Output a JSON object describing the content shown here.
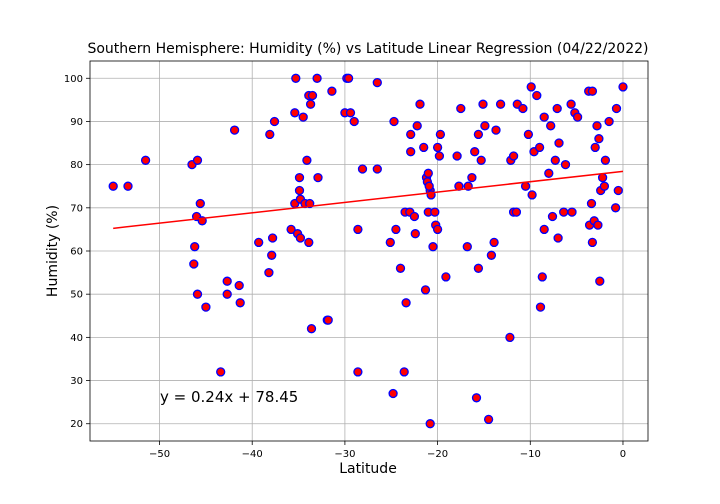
{
  "chart_data": {
    "type": "scatter",
    "title": "Southern Hemisphere: Humidity (%) vs Latitude Linear Regression (04/22/2022)",
    "xlabel": "Latitude",
    "ylabel": "Humidity (%)",
    "xlim": [
      -57.5,
      2.7
    ],
    "ylim": [
      16,
      104
    ],
    "xticks": [
      -50,
      -40,
      -30,
      -20,
      -10,
      0
    ],
    "yticks": [
      20,
      30,
      40,
      50,
      60,
      70,
      80,
      90,
      100
    ],
    "grid": true,
    "marker_face_color": "#ff0000",
    "marker_edge_color": "#0000ff",
    "regression": {
      "slope": 0.24,
      "intercept": 78.45,
      "x_range": [
        -55,
        0
      ],
      "color": "#ff0000",
      "equation_label": "y = 0.24x + 78.45"
    },
    "points": [
      [
        -55,
        75
      ],
      [
        -53.4,
        75
      ],
      [
        -51.5,
        81
      ],
      [
        -46.5,
        80
      ],
      [
        -45.9,
        81
      ],
      [
        -46,
        68
      ],
      [
        -45.6,
        71
      ],
      [
        -45.4,
        67
      ],
      [
        -46.2,
        61
      ],
      [
        -46.3,
        57
      ],
      [
        -45.9,
        50
      ],
      [
        -45,
        47
      ],
      [
        -43.4,
        32
      ],
      [
        -42.7,
        53
      ],
      [
        -42.7,
        50
      ],
      [
        -41.9,
        88
      ],
      [
        -41.4,
        52
      ],
      [
        -41.3,
        48
      ],
      [
        -39.3,
        62
      ],
      [
        -38.2,
        55
      ],
      [
        -38.1,
        87
      ],
      [
        -37.9,
        59
      ],
      [
        -37.8,
        63
      ],
      [
        -37.6,
        90
      ],
      [
        -35.8,
        65
      ],
      [
        -35.4,
        71
      ],
      [
        -35.3,
        100
      ],
      [
        -35.4,
        92
      ],
      [
        -35.1,
        64
      ],
      [
        -34.9,
        77
      ],
      [
        -34.9,
        74
      ],
      [
        -34.8,
        72
      ],
      [
        -34.8,
        63
      ],
      [
        -34.5,
        91
      ],
      [
        -34.3,
        71
      ],
      [
        -34.1,
        81
      ],
      [
        -33.9,
        96
      ],
      [
        -33.8,
        71
      ],
      [
        -33.9,
        62
      ],
      [
        -33.7,
        94
      ],
      [
        -33.5,
        96
      ],
      [
        -33.6,
        42
      ],
      [
        -33,
        100
      ],
      [
        -32.9,
        77
      ],
      [
        -31.9,
        44
      ],
      [
        -31.8,
        44
      ],
      [
        -31.4,
        97
      ],
      [
        -30,
        92
      ],
      [
        -29.8,
        100
      ],
      [
        -29.6,
        100
      ],
      [
        -29.4,
        92
      ],
      [
        -29,
        90
      ],
      [
        -28.6,
        32
      ],
      [
        -28.6,
        65
      ],
      [
        -28.1,
        79
      ],
      [
        -26.5,
        99
      ],
      [
        -26.5,
        79
      ],
      [
        -25.1,
        62
      ],
      [
        -24.7,
        90
      ],
      [
        -24.8,
        27
      ],
      [
        -24.5,
        65
      ],
      [
        -24,
        56
      ],
      [
        -23.6,
        32
      ],
      [
        -23.4,
        48
      ],
      [
        -23.5,
        69
      ],
      [
        -23,
        69
      ],
      [
        -22.9,
        87
      ],
      [
        -22.9,
        83
      ],
      [
        -22.5,
        68
      ],
      [
        -22.4,
        64
      ],
      [
        -22.2,
        89
      ],
      [
        -21.9,
        94
      ],
      [
        -21.5,
        84
      ],
      [
        -21.3,
        51
      ],
      [
        -21.2,
        77
      ],
      [
        -21,
        78
      ],
      [
        -21.1,
        76
      ],
      [
        -21,
        69
      ],
      [
        -20.8,
        74
      ],
      [
        -20.9,
        75
      ],
      [
        -20.7,
        73
      ],
      [
        -20.8,
        20
      ],
      [
        -20.5,
        61
      ],
      [
        -20.3,
        69
      ],
      [
        -20.2,
        66
      ],
      [
        -20,
        65
      ],
      [
        -20,
        84
      ],
      [
        -19.8,
        82
      ],
      [
        -19.7,
        87
      ],
      [
        -19.1,
        54
      ],
      [
        -17.9,
        82
      ],
      [
        -17.7,
        75
      ],
      [
        -17.5,
        93
      ],
      [
        -16.8,
        61
      ],
      [
        -16.7,
        75
      ],
      [
        -16.3,
        77
      ],
      [
        -16,
        83
      ],
      [
        -15.8,
        26
      ],
      [
        -15.6,
        56
      ],
      [
        -15.6,
        87
      ],
      [
        -15.3,
        81
      ],
      [
        -15.1,
        94
      ],
      [
        -14.9,
        89
      ],
      [
        -14.5,
        21
      ],
      [
        -14.2,
        59
      ],
      [
        -13.9,
        62
      ],
      [
        -13.7,
        88
      ],
      [
        -13.2,
        94
      ],
      [
        -12.2,
        40
      ],
      [
        -12.1,
        81
      ],
      [
        -11.8,
        82
      ],
      [
        -11.8,
        69
      ],
      [
        -11.5,
        69
      ],
      [
        -11.4,
        94
      ],
      [
        -10.8,
        93
      ],
      [
        -10.5,
        75
      ],
      [
        -10.2,
        87
      ],
      [
        -9.9,
        98
      ],
      [
        -9.8,
        73
      ],
      [
        -9.6,
        83
      ],
      [
        -9.3,
        96
      ],
      [
        -9,
        84
      ],
      [
        -8.9,
        47
      ],
      [
        -8.7,
        54
      ],
      [
        -8.5,
        91
      ],
      [
        -8.5,
        65
      ],
      [
        -8,
        78
      ],
      [
        -7.8,
        89
      ],
      [
        -7.6,
        68
      ],
      [
        -7.3,
        81
      ],
      [
        -7.1,
        93
      ],
      [
        -7,
        63
      ],
      [
        -6.9,
        85
      ],
      [
        -6.4,
        69
      ],
      [
        -6.2,
        80
      ],
      [
        -5.6,
        94
      ],
      [
        -5.5,
        69
      ],
      [
        -5.2,
        92
      ],
      [
        -4.9,
        91
      ],
      [
        -3.7,
        97
      ],
      [
        -3.6,
        66
      ],
      [
        -3.4,
        71
      ],
      [
        -3.3,
        97
      ],
      [
        -3.3,
        62
      ],
      [
        -3.1,
        67
      ],
      [
        -3,
        84
      ],
      [
        -2.8,
        89
      ],
      [
        -2.7,
        66
      ],
      [
        -2.6,
        86
      ],
      [
        -2.5,
        53
      ],
      [
        -2.4,
        74
      ],
      [
        -2.2,
        77
      ],
      [
        -2,
        75
      ],
      [
        -1.9,
        81
      ],
      [
        -1.5,
        90
      ],
      [
        -0.8,
        70
      ],
      [
        -0.7,
        93
      ],
      [
        -0.5,
        74
      ],
      [
        0,
        98
      ]
    ]
  }
}
